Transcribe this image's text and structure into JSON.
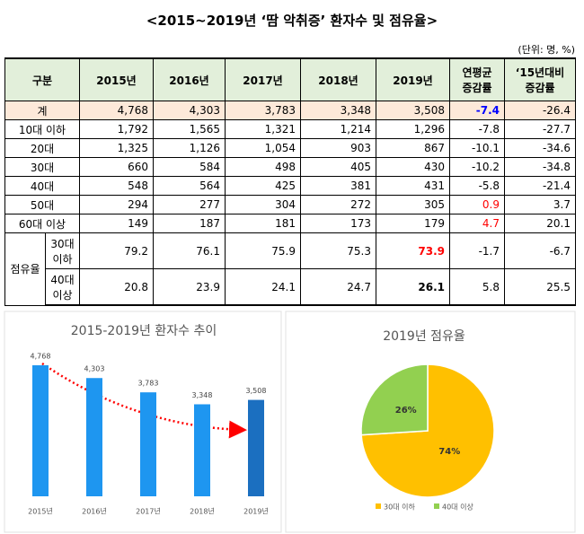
{
  "title": "<2015~2019년 ‘땀 악취증’ 환자수 및 점유율>",
  "unit": "(단위: 명, %)",
  "table": {
    "header": [
      "구분",
      "2015년",
      "2016년",
      "2017년",
      "2018년",
      "2019년",
      [
        "연평균",
        "증감률"
      ],
      [
        "‘15년대비",
        "증감률"
      ]
    ],
    "rows": [
      {
        "label": "계",
        "cells": [
          "4,768",
          "4,303",
          "3,783",
          "3,348",
          "3,508",
          "-7.4",
          "-26.4"
        ]
      },
      {
        "label": "10대 이하",
        "cells": [
          "1,792",
          "1,565",
          "1,321",
          "1,214",
          "1,296",
          "-7.8",
          "-27.7"
        ]
      },
      {
        "label": "20대",
        "cells": [
          "1,325",
          "1,126",
          "1,054",
          "903",
          "867",
          "-10.1",
          "-34.6"
        ]
      },
      {
        "label": "30대",
        "cells": [
          "660",
          "584",
          "498",
          "405",
          "430",
          "-10.2",
          "-34.8"
        ]
      },
      {
        "label": "40대",
        "cells": [
          "548",
          "564",
          "425",
          "381",
          "431",
          "-5.8",
          "-21.4"
        ]
      },
      {
        "label": "50대",
        "cells": [
          "294",
          "277",
          "304",
          "272",
          "305",
          "0.9",
          "3.7"
        ]
      },
      {
        "label": "60대 이상",
        "cells": [
          "149",
          "187",
          "181",
          "173",
          "179",
          "4.7",
          "20.1"
        ]
      }
    ],
    "share": {
      "label": "점유율",
      "rows": [
        {
          "label": [
            "30대",
            "이하"
          ],
          "cells": [
            "79.2",
            "76.1",
            "75.9",
            "75.3",
            "73.9",
            "-1.7",
            "-6.7"
          ]
        },
        {
          "label": [
            "40대",
            "이상"
          ],
          "cells": [
            "20.8",
            "23.9",
            "24.1",
            "24.7",
            "26.1",
            "5.8",
            "25.5"
          ]
        }
      ]
    }
  },
  "chart_data": [
    {
      "type": "bar",
      "title": "2015-2019년 환자수 추이",
      "categories": [
        "2015년",
        "2016년",
        "2017년",
        "2018년",
        "2019년"
      ],
      "values": [
        4768,
        4303,
        3783,
        3348,
        3508
      ],
      "value_labels": [
        "4,768",
        "4,303",
        "3,783",
        "3,348",
        "3,508"
      ],
      "colors": [
        "#1e96f0",
        "#1e96f0",
        "#1e96f0",
        "#1e96f0",
        "#1b6fc0"
      ]
    },
    {
      "type": "pie",
      "title": "2019년 점유율",
      "categories": [
        "30대 이하",
        "40대 이상"
      ],
      "values": [
        74,
        26
      ],
      "value_labels": [
        "74%",
        "26%"
      ],
      "colors": [
        "#ffc000",
        "#92d050"
      ]
    }
  ]
}
